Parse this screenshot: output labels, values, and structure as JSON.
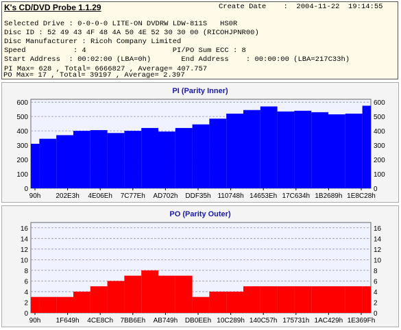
{
  "header": {
    "title": "K's CD/DVD Probe 1.1.29",
    "create_date_label": "Create Date",
    "create_date_value": ":  2004-11-22  19:14:55",
    "lines": [
      "Selected Drive : 0-0-0-0 LITE-ON DVDRW LDW-811S   HS0R",
      "Disc ID : 52 49 43 4F 48 4A 50 4E 52 30 30 00 (RICOHJPNR00)",
      "Disc Manufacturer : Ricoh Company Limited",
      "Speed           : 4                    PI/PO Sum ECC : 8",
      "Start Address  : 00:02:00 (LBA=0h)       End Address    : 00:00:00 (LBA=217C33h)",
      "PI Max= 628 , Total= 6666827 , Average= 407.757",
      "PO Max= 17 , Total= 39197 , Average= 2.397"
    ]
  },
  "chart_data": [
    {
      "type": "area",
      "title": "PI (Parity Inner)",
      "color": "#0000ff",
      "ylim": [
        0,
        620
      ],
      "yticks": [
        0,
        100,
        200,
        300,
        400,
        500,
        600
      ],
      "xticks": [
        "90h",
        "202E3h",
        "4E06Eh",
        "7C77Eh",
        "AD702h",
        "DDF35h",
        "110748h",
        "14653Eh",
        "17C634h",
        "1B2689h",
        "1E8C28h"
      ],
      "grid": true,
      "x": [
        0,
        0.05,
        0.1,
        0.15,
        0.2,
        0.25,
        0.3,
        0.35,
        0.4,
        0.45,
        0.5,
        0.55,
        0.6,
        0.65,
        0.7,
        0.75,
        0.8,
        0.85,
        0.9,
        0.95,
        1.0
      ],
      "values": [
        310,
        345,
        370,
        400,
        405,
        385,
        400,
        420,
        395,
        420,
        445,
        485,
        520,
        545,
        570,
        535,
        540,
        530,
        515,
        520,
        575
      ]
    },
    {
      "type": "bar",
      "title": "PO (Parity Outer)",
      "color": "#ff0000",
      "ylim": [
        0,
        17
      ],
      "yticks": [
        0,
        2,
        4,
        6,
        8,
        10,
        12,
        14,
        16
      ],
      "xticks": [
        "90h",
        "1F649h",
        "4CE8Ch",
        "7BB6Eh",
        "AB749h",
        "DB0EEh",
        "10C289h",
        "140C57h",
        "175731h",
        "1AC429h",
        "1E369Fh"
      ],
      "grid": true,
      "x": [
        0,
        0.05,
        0.1,
        0.15,
        0.2,
        0.25,
        0.3,
        0.35,
        0.4,
        0.45,
        0.5,
        0.55,
        0.6,
        0.65,
        0.7,
        0.75,
        0.8,
        0.85,
        0.9,
        0.95,
        1.0
      ],
      "values": [
        3,
        3,
        3,
        4,
        5,
        6,
        7,
        8,
        7,
        7,
        3,
        4,
        4,
        5,
        5,
        5,
        5,
        5,
        5,
        5,
        5
      ]
    }
  ]
}
